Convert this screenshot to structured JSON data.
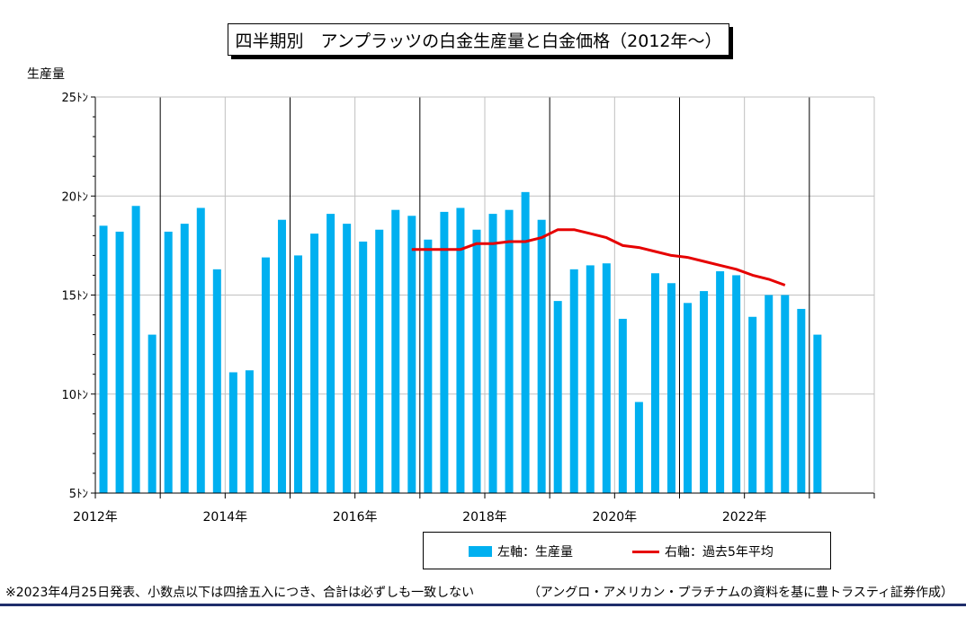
{
  "title": "四半期別　アンプラッツの白金生産量と白金価格（2012年～）",
  "footnote": "※2023年4月25日発表、小数点以下は四捨五入につき、合計は必ずしも一致しない",
  "source": "（アングロ・アメリカン・プラチナムの資料を基に豊トラスティ証券作成）",
  "colors": {
    "bar": "#00b0f0",
    "line": "#e60000",
    "grid": "#c0c0c0",
    "rule": "#1f2d6b"
  },
  "chart_data": {
    "type": "bar",
    "title": "四半期別　アンプラッツの白金生産量と白金価格（2012年～）",
    "ylabel": "生産量",
    "ylim": [
      5,
      25
    ],
    "yticks": [
      5,
      10,
      15,
      20,
      25
    ],
    "ytick_labels": [
      "5ﾄﾝ",
      "10ﾄﾝ",
      "15ﾄﾝ",
      "20ﾄﾝ",
      "25ﾄﾝ"
    ],
    "xticks": [
      "2012年",
      "2014年",
      "2016年",
      "2018年",
      "2020年",
      "2022年"
    ],
    "grid": true,
    "legend_position": "bottom",
    "series": [
      {
        "name": "左軸：生産量",
        "type": "bar",
        "values": [
          18.5,
          18.2,
          19.5,
          13.0,
          18.2,
          18.6,
          19.4,
          16.3,
          11.1,
          11.2,
          16.9,
          18.8,
          17.0,
          18.1,
          19.1,
          18.6,
          17.7,
          18.3,
          19.3,
          19.0,
          17.8,
          19.2,
          19.4,
          18.3,
          19.1,
          19.3,
          20.2,
          18.8,
          14.7,
          16.3,
          16.5,
          16.6,
          13.8,
          9.6,
          16.1,
          15.6,
          14.6,
          15.2,
          16.2,
          16.0,
          13.9,
          15.0,
          15.0,
          14.3,
          13.0
        ]
      },
      {
        "name": "右軸：過去5年平均",
        "type": "line",
        "start_index": 19,
        "values": [
          17.3,
          17.3,
          17.3,
          17.3,
          17.6,
          17.6,
          17.7,
          17.7,
          17.9,
          18.3,
          18.3,
          18.1,
          17.9,
          17.5,
          17.4,
          17.2,
          17.0,
          16.9,
          16.7,
          16.5,
          16.3,
          16.0,
          15.8,
          15.5
        ]
      }
    ]
  }
}
